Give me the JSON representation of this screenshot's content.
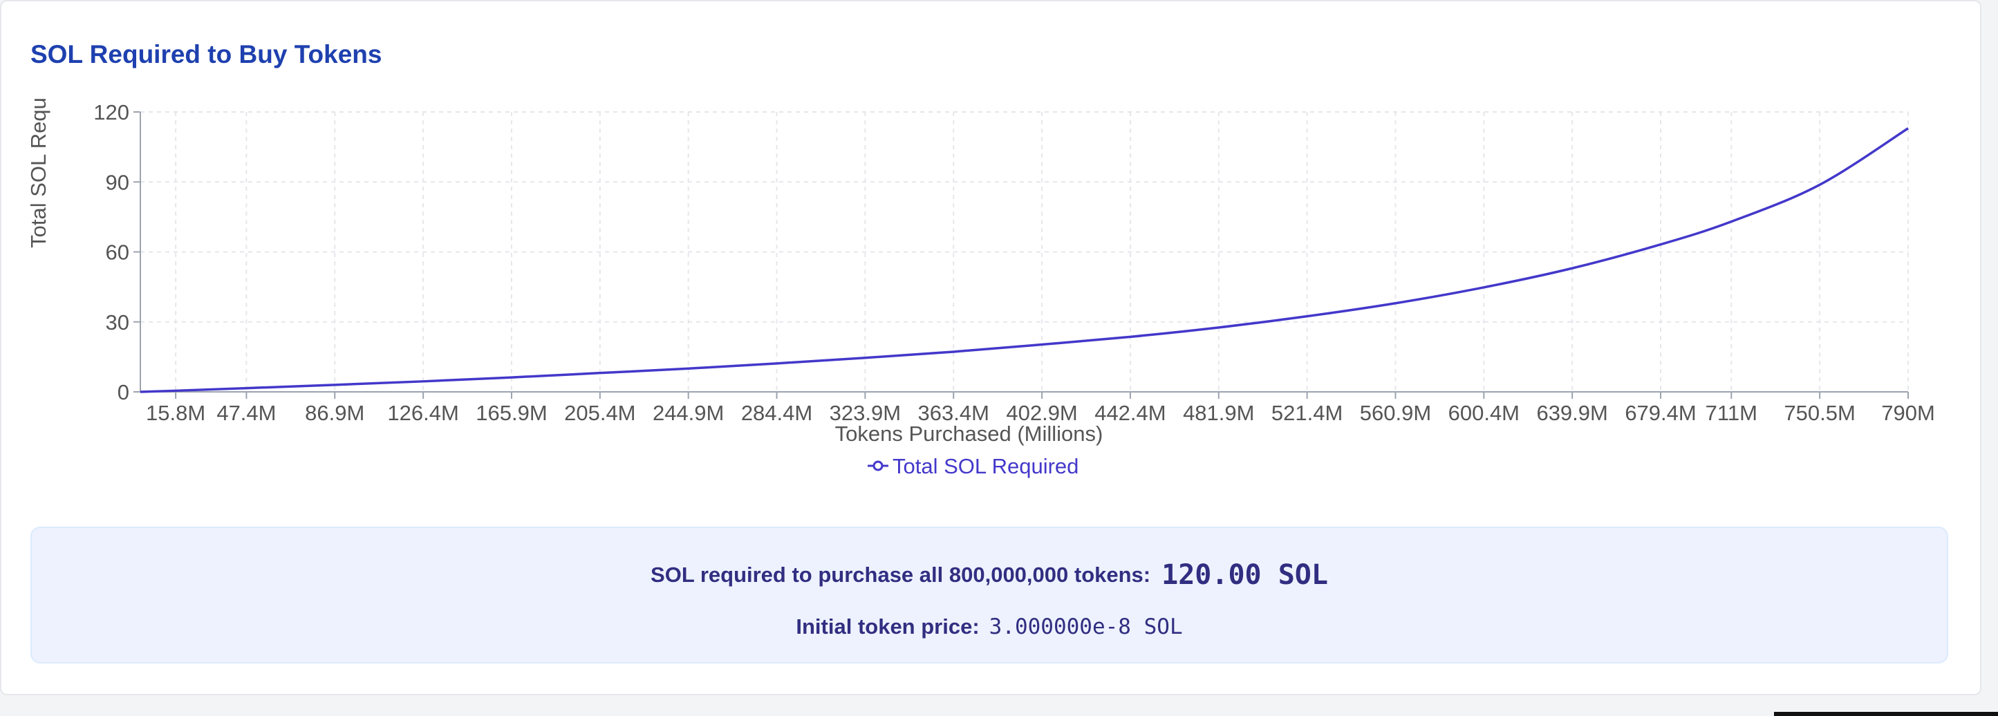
{
  "header": {
    "title": "SOL Required to Buy Tokens"
  },
  "chart_data": {
    "type": "line",
    "xlabel": "Tokens Purchased (Millions)",
    "ylabel": "Total SOL Requ",
    "x_tick_labels": [
      "15.8M",
      "47.4M",
      "86.9M",
      "126.4M",
      "165.9M",
      "205.4M",
      "244.9M",
      "284.4M",
      "323.9M",
      "363.4M",
      "402.9M",
      "442.4M",
      "481.9M",
      "521.4M",
      "560.9M",
      "600.4M",
      "639.9M",
      "679.4M",
      "711M",
      "750.5M",
      "790M"
    ],
    "x_ticks": [
      15.8,
      47.4,
      86.9,
      126.4,
      165.9,
      205.4,
      244.9,
      284.4,
      323.9,
      363.4,
      402.9,
      442.4,
      481.9,
      521.4,
      560.9,
      600.4,
      639.9,
      679.4,
      711,
      750.5,
      790
    ],
    "ylim": [
      0,
      120
    ],
    "y_ticks": [
      0,
      30,
      60,
      90,
      120
    ],
    "grid": true,
    "legend_position": "bottom",
    "series": [
      {
        "name": "Total SOL Required",
        "color": "#4338ca",
        "x": [
          0,
          15.8,
          47.4,
          86.9,
          126.4,
          165.9,
          205.4,
          244.9,
          284.4,
          323.9,
          363.4,
          402.9,
          442.4,
          481.9,
          521.4,
          560.9,
          600.4,
          639.9,
          679.4,
          711,
          750.5,
          790
        ],
        "y": [
          0,
          0.5,
          1.6,
          3.0,
          4.5,
          6.2,
          8.1,
          10.0,
          12.2,
          14.6,
          17.2,
          20.3,
          23.6,
          27.6,
          32.4,
          38.0,
          44.8,
          53.0,
          63.2,
          73.0,
          88.8,
          113.0
        ]
      }
    ]
  },
  "summary": {
    "purchase_label": "SOL required to purchase all 800,000,000 tokens:",
    "purchase_value": "120.00 SOL",
    "price_label": "Initial token price:",
    "price_value": "3.000000e-8 SOL"
  }
}
